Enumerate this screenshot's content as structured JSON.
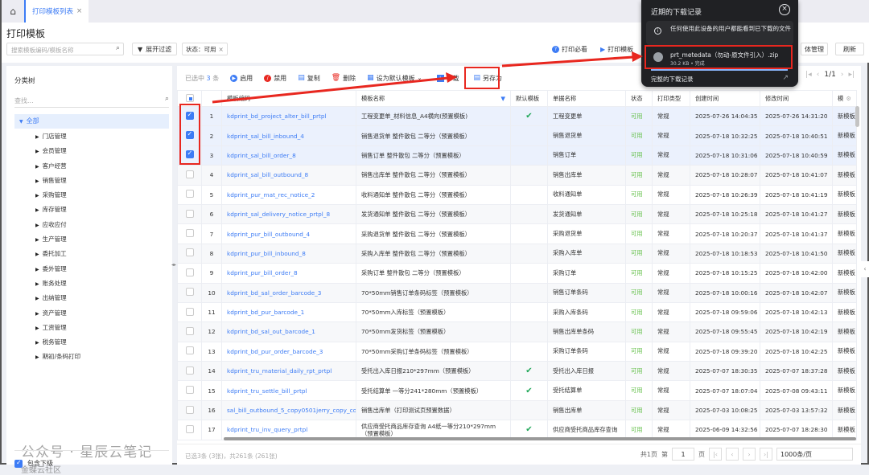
{
  "tabbar": {
    "tab": "打印模板列表",
    "close": "×"
  },
  "page": {
    "title": "打印模板"
  },
  "search": {
    "placeholder": "搜索模板编码/模板名称",
    "expand_filter": "展开过滤",
    "filter_tag": "状态：可用",
    "filter_close": "×"
  },
  "header_actions": {
    "print_guide": "打印必看",
    "print_template": "打印模板",
    "manage": "体管理",
    "refresh": "刷新"
  },
  "tree": {
    "title": "分类树",
    "search_placeholder": "查找...",
    "root": "全部",
    "items": [
      "门店管理",
      "会员管理",
      "客户经营",
      "销售管理",
      "采购管理",
      "库存管理",
      "应收应付",
      "生产管理",
      "委托加工",
      "委外管理",
      "账务处理",
      "出纳管理",
      "资产管理",
      "工资管理",
      "税务管理",
      "期初/条码打印"
    ],
    "include_sub": "包含下级"
  },
  "toolbar": {
    "selected_prefix": "已选中",
    "selected_count": "3",
    "selected_suffix": "条",
    "enable": "启用",
    "disable": "禁用",
    "copy": "复制",
    "delete": "删除",
    "set_default": "设为默认模板",
    "download": "下载",
    "save_as": "另存为",
    "page": "1/1"
  },
  "table": {
    "headers": [
      "模板编码",
      "模板名称",
      "默认模板",
      "单据名称",
      "状态",
      "打印类型",
      "创建时间",
      "修改时间",
      "模"
    ],
    "rows": [
      {
        "n": "1",
        "code": "kdprint_bd_project_alter_bill_prtpl",
        "name": "工程变更单_材料信息_A4横向(预置模板)",
        "def": true,
        "bill": "工程变更单",
        "status": "可用",
        "type": "常规",
        "created": "2025-07-26 14:04:35",
        "modified": "2025-07-26 14:31:20",
        "kind": "新模板",
        "sel": true
      },
      {
        "n": "2",
        "code": "kdprint_sal_bill_inbound_4",
        "name": "销售退货单 整件散包 二等分（预置模板）",
        "def": false,
        "bill": "销售退货单",
        "status": "可用",
        "type": "常规",
        "created": "2025-07-18 10:32:25",
        "modified": "2025-07-18 10:40:51",
        "kind": "新模板",
        "sel": true
      },
      {
        "n": "3",
        "code": "kdprint_sal_bill_order_8",
        "name": "销售订单 整件散包 二等分（预置模板）",
        "def": false,
        "bill": "销售订单",
        "status": "可用",
        "type": "常规",
        "created": "2025-07-18 10:31:06",
        "modified": "2025-07-18 10:40:59",
        "kind": "新模板",
        "sel": true
      },
      {
        "n": "4",
        "code": "kdprint_sal_bill_outbound_8",
        "name": "销售出库单 整件散包 二等分（预置模板）",
        "def": false,
        "bill": "销售出库单",
        "status": "可用",
        "type": "常规",
        "created": "2025-07-18 10:28:07",
        "modified": "2025-07-18 10:41:07",
        "kind": "新模板",
        "sel": false
      },
      {
        "n": "5",
        "code": "kdprint_pur_mat_rec_notice_2",
        "name": "收料通知单 整件散包 二等分（预置模板）",
        "def": false,
        "bill": "收料通知单",
        "status": "可用",
        "type": "常规",
        "created": "2025-07-18 10:26:39",
        "modified": "2025-07-18 10:41:19",
        "kind": "新模板",
        "sel": false
      },
      {
        "n": "6",
        "code": "kdprint_sal_delivery_notice_prtpl_8",
        "name": "发货通知单 整件散包 二等分（预置模板）",
        "def": false,
        "bill": "发货通知单",
        "status": "可用",
        "type": "常规",
        "created": "2025-07-18 10:25:18",
        "modified": "2025-07-18 10:41:27",
        "kind": "新模板",
        "sel": false
      },
      {
        "n": "7",
        "code": "kdprint_pur_bill_outbound_4",
        "name": "采购退货单 整件散包 二等分（预置模板）",
        "def": false,
        "bill": "采购退货单",
        "status": "可用",
        "type": "常规",
        "created": "2025-07-18 10:20:37",
        "modified": "2025-07-18 10:41:37",
        "kind": "新模板",
        "sel": false
      },
      {
        "n": "8",
        "code": "kdprint_pur_bill_inbound_8",
        "name": "采购入库单 整件散包 二等分（预置模板）",
        "def": false,
        "bill": "采购入库单",
        "status": "可用",
        "type": "常规",
        "created": "2025-07-18 10:18:53",
        "modified": "2025-07-18 10:41:50",
        "kind": "新模板",
        "sel": false
      },
      {
        "n": "9",
        "code": "kdprint_pur_bill_order_8",
        "name": "采购订单 整件散包 二等分（预置模板）",
        "def": false,
        "bill": "采购订单",
        "status": "可用",
        "type": "常规",
        "created": "2025-07-18 10:15:25",
        "modified": "2025-07-18 10:42:00",
        "kind": "新模板",
        "sel": false
      },
      {
        "n": "10",
        "code": "kdprint_bd_sal_order_barcode_3",
        "name": "70*50mm销售订单条码标签（预置模板）",
        "def": false,
        "bill": "销售订单条码",
        "status": "可用",
        "type": "常规",
        "created": "2025-07-18 10:00:16",
        "modified": "2025-07-18 10:42:07",
        "kind": "新模板",
        "sel": false
      },
      {
        "n": "11",
        "code": "kdprint_bd_pur_barcode_1",
        "name": "70*50mm入库标签（预置模板）",
        "def": false,
        "bill": "采购入库条码",
        "status": "可用",
        "type": "常规",
        "created": "2025-07-18 09:59:06",
        "modified": "2025-07-18 10:42:13",
        "kind": "新模板",
        "sel": false
      },
      {
        "n": "12",
        "code": "kdprint_bd_sal_out_barcode_1",
        "name": "70*50mm发货标签（预置模板）",
        "def": false,
        "bill": "销售出库单条码",
        "status": "可用",
        "type": "常规",
        "created": "2025-07-18 09:55:45",
        "modified": "2025-07-18 10:42:19",
        "kind": "新模板",
        "sel": false
      },
      {
        "n": "13",
        "code": "kdprint_bd_pur_order_barcode_3",
        "name": "70*50mm采购订单条码标签（预置模板）",
        "def": false,
        "bill": "采购订单条码",
        "status": "可用",
        "type": "常规",
        "created": "2025-07-18 09:39:20",
        "modified": "2025-07-18 10:42:25",
        "kind": "新模板",
        "sel": false
      },
      {
        "n": "14",
        "code": "kdprint_tru_material_daily_rpt_prtpl",
        "name": "受托出入库日报210*297mm（预置模板）",
        "def": true,
        "bill": "受托出入库日报",
        "status": "可用",
        "type": "常规",
        "created": "2025-07-07 18:30:35",
        "modified": "2025-07-07 18:37:28",
        "kind": "新模板",
        "sel": false
      },
      {
        "n": "15",
        "code": "kdprint_tru_settle_bill_prtpl",
        "name": "受托结算单 一等分241*280mm（预置模板）",
        "def": true,
        "bill": "受托结算单",
        "status": "可用",
        "type": "常规",
        "created": "2025-07-07 18:07:04",
        "modified": "2025-07-08 09:43:11",
        "kind": "新模板",
        "sel": false
      },
      {
        "n": "16",
        "code": "sal_bill_outbound_5_copy0501jerry_copy_copy",
        "name": "销售出库单（打印测试页预置数据）",
        "def": false,
        "bill": "销售出库单",
        "status": "可用",
        "type": "常规",
        "created": "2025-07-03 10:08:25",
        "modified": "2025-07-03 13:57:32",
        "kind": "新模板",
        "sel": false
      },
      {
        "n": "17",
        "code": "kdprint_tru_inv_query_prtpl",
        "name": "供应商受托商品库存查询 A4纸一等分210*297mm（预置模板）",
        "def": true,
        "bill": "供应商受托商品库存查询",
        "status": "可用",
        "type": "常规",
        "created": "2025-06-09 14:32:56",
        "modified": "2025-07-07 18:28:30",
        "kind": "新模板",
        "sel": false
      }
    ]
  },
  "footer": {
    "summary": "已选3条 (3张)，共261条 (261张)",
    "total_pages": "共1页",
    "page_prefix": "第",
    "page_value": "1",
    "page_suffix": "页",
    "page_size": "1000条/页"
  },
  "downloads": {
    "title": "近期的下载记录",
    "notice": "任何使用此设备的用户都能看到已下载的文件",
    "file_name": "prt_metedata（勿动-原文件引入）.zip",
    "file_meta": "30.2 KB • 完成",
    "all": "完整的下载记录"
  },
  "watermark": {
    "text": "公众号 · 星辰云笔记",
    "community": "金蝶云社区"
  },
  "colors": {
    "accent": "#3d7cf5",
    "status_ok": "#65c04b",
    "highlight": "#e8271f",
    "popup_bg": "#202124"
  }
}
